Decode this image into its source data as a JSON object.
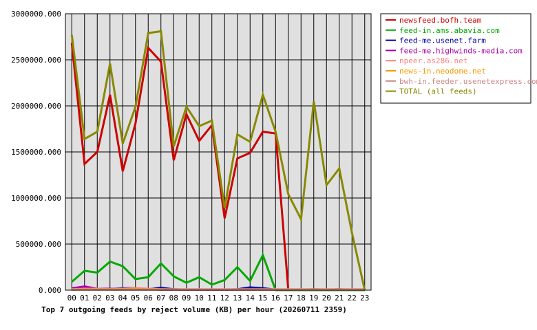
{
  "chart_data": {
    "type": "line",
    "title": "Top 7 outgoing feeds by reject volume (KB) per hour (20260711 2359)",
    "xlabel": "",
    "ylabel": "",
    "ylim": [
      0,
      3000000
    ],
    "y_ticks": [
      "0.000",
      "500000.000",
      "1000000.000",
      "1500000.000",
      "2000000.000",
      "2500000.000",
      "3000000.000"
    ],
    "categories": [
      "00",
      "01",
      "02",
      "03",
      "04",
      "05",
      "06",
      "07",
      "08",
      "09",
      "10",
      "11",
      "12",
      "13",
      "14",
      "15",
      "16",
      "17",
      "18",
      "19",
      "20",
      "21",
      "22",
      "23"
    ],
    "grid": true,
    "legend_position": "right",
    "background": "#e0e0e0",
    "series": [
      {
        "name": "newsfeed.bofh.team",
        "color": "#cc0000",
        "values": [
          2680000,
          1370000,
          1500000,
          2120000,
          1290000,
          1810000,
          2630000,
          2480000,
          1410000,
          1910000,
          1620000,
          1790000,
          780000,
          1430000,
          1490000,
          1720000,
          1700000,
          0,
          0,
          0,
          0,
          0,
          0,
          0
        ]
      },
      {
        "name": "feed-in.ams.abavia.com",
        "color": "#00aa00",
        "values": [
          90000,
          210000,
          190000,
          310000,
          260000,
          120000,
          140000,
          290000,
          150000,
          80000,
          140000,
          60000,
          110000,
          250000,
          100000,
          380000,
          0,
          0,
          0,
          0,
          0,
          0,
          0,
          0
        ]
      },
      {
        "name": "feed-me.usenet.farm",
        "color": "#0000aa",
        "values": [
          10000,
          15000,
          10000,
          10000,
          20000,
          20000,
          10000,
          25000,
          10000,
          5000,
          5000,
          5000,
          5000,
          10000,
          30000,
          20000,
          5000,
          5000,
          5000,
          10000,
          5000,
          10000,
          5000,
          5000
        ]
      },
      {
        "name": "feed-me.highwinds-media.com",
        "color": "#aa00aa",
        "values": [
          20000,
          40000,
          15000,
          15000,
          10000,
          10000,
          10000,
          5000,
          5000,
          5000,
          5000,
          5000,
          5000,
          5000,
          5000,
          5000,
          5000,
          5000,
          5000,
          5000,
          5000,
          5000,
          5000,
          5000
        ]
      },
      {
        "name": "npeer.as286.net",
        "color": "#ff8080",
        "values": [
          10000,
          15000,
          15000,
          10000,
          15000,
          20000,
          15000,
          10000,
          10000,
          10000,
          10000,
          10000,
          10000,
          10000,
          10000,
          10000,
          10000,
          10000,
          10000,
          10000,
          10000,
          10000,
          10000,
          10000
        ]
      },
      {
        "name": "news-in.neodome.net",
        "color": "#ff9900",
        "values": [
          5000,
          10000,
          10000,
          10000,
          10000,
          15000,
          10000,
          10000,
          5000,
          5000,
          5000,
          5000,
          5000,
          5000,
          5000,
          5000,
          5000,
          5000,
          5000,
          5000,
          5000,
          5000,
          5000,
          5000
        ]
      },
      {
        "name": "bwh-in.feeder.usenetexpress.com",
        "color": "#cc8888",
        "values": [
          5000,
          5000,
          5000,
          5000,
          5000,
          5000,
          5000,
          5000,
          5000,
          5000,
          5000,
          5000,
          5000,
          5000,
          5000,
          5000,
          5000,
          5000,
          5000,
          5000,
          5000,
          5000,
          5000,
          5000
        ]
      },
      {
        "name": "TOTAL (all feeds)",
        "color": "#888800",
        "values": [
          2770000,
          1640000,
          1720000,
          2460000,
          1590000,
          1990000,
          2790000,
          2810000,
          1560000,
          1990000,
          1780000,
          1840000,
          890000,
          1690000,
          1610000,
          2120000,
          1720000,
          1040000,
          770000,
          2050000,
          1140000,
          1320000,
          620000,
          0
        ]
      }
    ]
  }
}
